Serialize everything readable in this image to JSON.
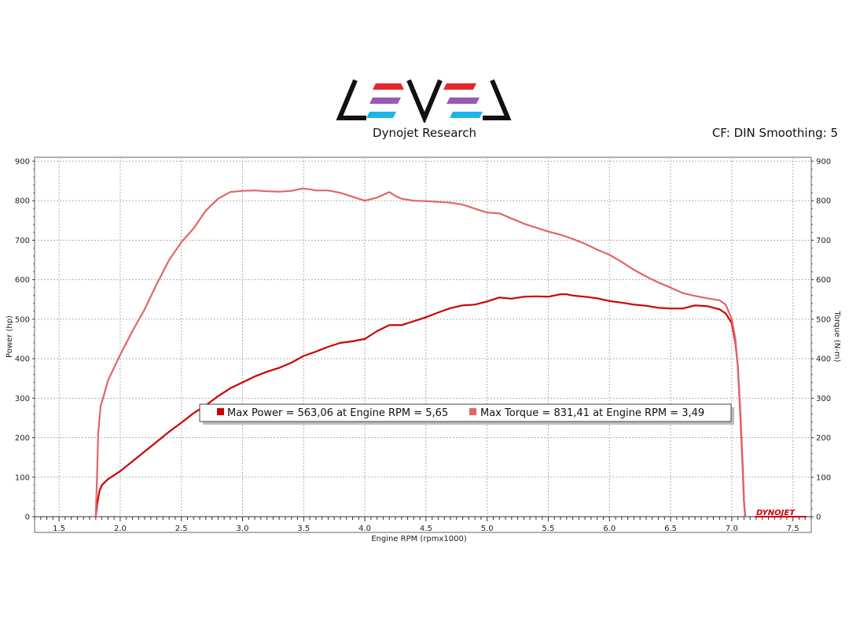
{
  "header": {
    "company": "Dynojet Research",
    "cf_info": "CF: DIN Smoothing: 5"
  },
  "logo_brand": "DYNOJET",
  "colors": {
    "power": "#cc0000",
    "torque": "#e06666",
    "grid": "#b0b0b0",
    "logo_red": "#e8252b",
    "logo_purple": "#9b59b6",
    "logo_cyan": "#1ab6e8"
  },
  "legend": [
    {
      "text": "Max Power = 563,06 at Engine RPM = 5,65",
      "color": "#cc0000"
    },
    {
      "text": "Max Torque = 831,41 at Engine RPM = 3,49",
      "color": "#e06666"
    }
  ],
  "chart_data": {
    "type": "line",
    "xlabel": "Engine RPM (rpmx1000)",
    "ylabel_left": "Power (hp)",
    "ylabel_right": "Torque (N-m)",
    "xlim": [
      1.3,
      7.65
    ],
    "ylim": [
      0,
      900
    ],
    "x_ticks": [
      1.5,
      2.0,
      2.5,
      3.0,
      3.5,
      4.0,
      4.5,
      5.0,
      5.5,
      6.0,
      6.5,
      7.0,
      7.5
    ],
    "x_tick_labels": [
      "1.5",
      "2.0",
      "2.5",
      "3.0",
      "3.5",
      "4.0",
      "4.5",
      "5.0",
      "5.5",
      "6.0",
      "6.5",
      "7.0",
      "7.5"
    ],
    "y_ticks": [
      0,
      100,
      200,
      300,
      400,
      500,
      600,
      700,
      800,
      900
    ],
    "y_tick_labels": [
      "0",
      "100",
      "200",
      "300",
      "400",
      "500",
      "600",
      "700",
      "800",
      "900"
    ],
    "grid": true,
    "series": [
      {
        "name": "Max Power",
        "color": "#cc0000",
        "x": [
          1.8,
          1.81,
          1.83,
          1.85,
          1.9,
          2.0,
          2.1,
          2.2,
          2.3,
          2.4,
          2.5,
          2.6,
          2.7,
          2.8,
          2.9,
          3.0,
          3.1,
          3.2,
          3.3,
          3.4,
          3.5,
          3.6,
          3.7,
          3.8,
          3.9,
          4.0,
          4.1,
          4.2,
          4.3,
          4.4,
          4.5,
          4.6,
          4.7,
          4.8,
          4.9,
          5.0,
          5.1,
          5.2,
          5.3,
          5.4,
          5.5,
          5.6,
          5.65,
          5.7,
          5.8,
          5.9,
          6.0,
          6.1,
          6.2,
          6.3,
          6.4,
          6.5,
          6.6,
          6.7,
          6.8,
          6.9,
          6.95,
          7.0,
          7.03,
          7.05,
          7.07,
          7.09,
          7.1,
          7.11
        ],
        "values": [
          0,
          30,
          65,
          80,
          95,
          115,
          140,
          165,
          190,
          215,
          238,
          262,
          282,
          305,
          325,
          340,
          355,
          367,
          377,
          390,
          407,
          418,
          430,
          440,
          444,
          450,
          470,
          485,
          485,
          495,
          505,
          517,
          528,
          535,
          537,
          545,
          555,
          552,
          557,
          558,
          557,
          563,
          563,
          560,
          557,
          553,
          546,
          542,
          537,
          534,
          529,
          527,
          527,
          535,
          533,
          525,
          515,
          490,
          440,
          380,
          260,
          120,
          40,
          0
        ]
      },
      {
        "name": "Max Torque",
        "color": "#e06666",
        "x": [
          1.8,
          1.81,
          1.82,
          1.84,
          1.86,
          1.9,
          2.0,
          2.1,
          2.2,
          2.3,
          2.4,
          2.5,
          2.6,
          2.7,
          2.8,
          2.9,
          3.0,
          3.1,
          3.2,
          3.3,
          3.4,
          3.49,
          3.55,
          3.6,
          3.7,
          3.8,
          3.9,
          4.0,
          4.1,
          4.2,
          4.25,
          4.3,
          4.4,
          4.5,
          4.6,
          4.7,
          4.8,
          4.9,
          5.0,
          5.1,
          5.2,
          5.3,
          5.4,
          5.5,
          5.6,
          5.7,
          5.8,
          5.9,
          6.0,
          6.1,
          6.2,
          6.3,
          6.4,
          6.5,
          6.6,
          6.7,
          6.8,
          6.9,
          6.95,
          7.0,
          7.03,
          7.05,
          7.07,
          7.09,
          7.1,
          7.11
        ],
        "values": [
          0,
          100,
          210,
          280,
          300,
          345,
          410,
          470,
          525,
          590,
          650,
          695,
          730,
          775,
          805,
          822,
          825,
          826,
          824,
          823,
          825,
          831,
          829,
          826,
          826,
          820,
          810,
          800,
          808,
          822,
          812,
          805,
          800,
          799,
          797,
          795,
          790,
          780,
          770,
          768,
          755,
          742,
          732,
          722,
          714,
          703,
          691,
          676,
          663,
          645,
          625,
          608,
          593,
          580,
          566,
          559,
          553,
          548,
          537,
          500,
          450,
          380,
          250,
          110,
          40,
          0
        ]
      }
    ]
  }
}
